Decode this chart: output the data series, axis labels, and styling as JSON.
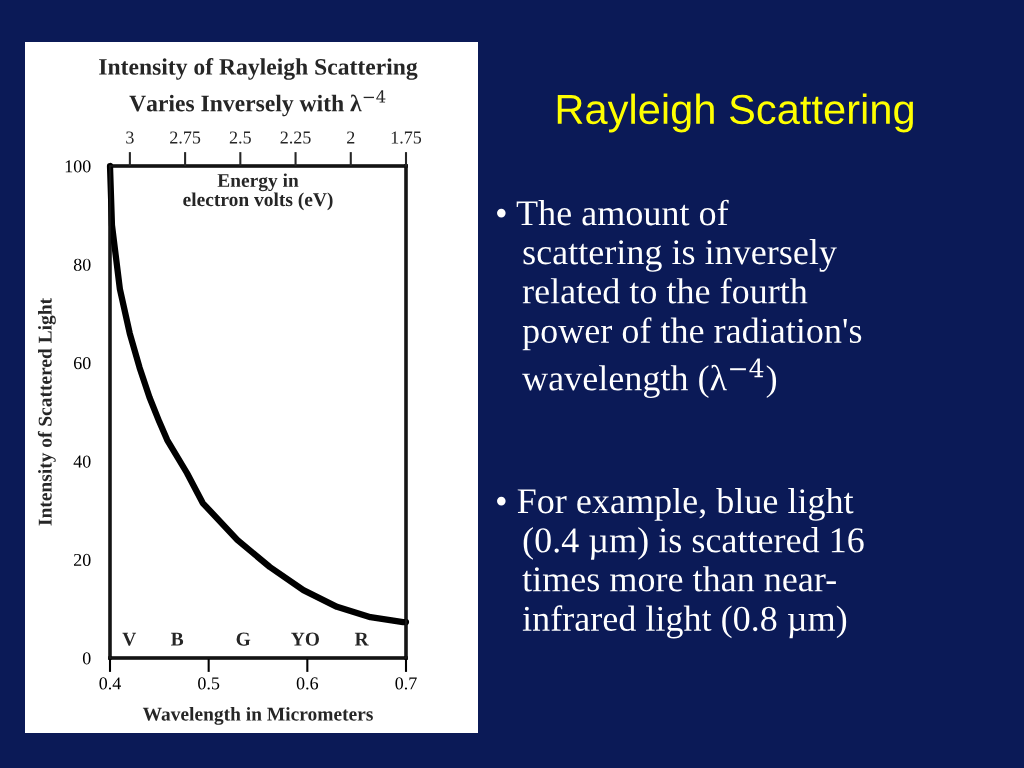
{
  "chart_data": {
    "type": "line",
    "title": "Intensity of Rayleigh Scattering\nVaries Inversely with λ$^{−4}$",
    "xlabel": "Wavelength in Micrometers",
    "ylabel": "Intensity of Scattered Light",
    "x2label": "Energy in\nelectron volts (eV)",
    "series": [
      {
        "color": "#000000",
        "x": [
          0.4,
          0.402,
          0.41,
          0.42,
          0.43,
          0.44,
          0.45,
          0.458,
          0.478,
          0.494,
          0.529,
          0.562,
          0.596,
          0.63,
          0.664,
          0.697,
          0.7
        ],
        "values": [
          100,
          88,
          75,
          66,
          59,
          53,
          48,
          44.3,
          37.6,
          31.5,
          24,
          18.5,
          13.8,
          10.4,
          8.3,
          7.3,
          7.3
        ]
      }
    ],
    "xlim": [
      0.4,
      0.7
    ],
    "xticks": [
      0.4,
      0.5,
      0.6,
      0.7
    ],
    "ylim": [
      0,
      100
    ],
    "yticks": [
      0,
      20,
      40,
      60,
      80,
      100
    ],
    "x2lim": [
      3.09,
      1.75
    ],
    "x2ticks": [
      3,
      2.75,
      2.5,
      2.25,
      2,
      1.75
    ],
    "grid": false,
    "legend": false,
    "marker": "none",
    "line_style": "solid",
    "annotations": [
      "V",
      "B",
      "G",
      "YO",
      "R",
      "Rayleigh Scattering",
      "• The amount of\n   scattering is inversely\n   related to the fourth\n   power of the radiation's\n   wavelength (λ$^{−4}$)",
      "• For example, blue light\n   (0.4 µm) is scattered 16\n   times more than near-\n   infrared light (0.8 µm)"
    ]
  }
}
